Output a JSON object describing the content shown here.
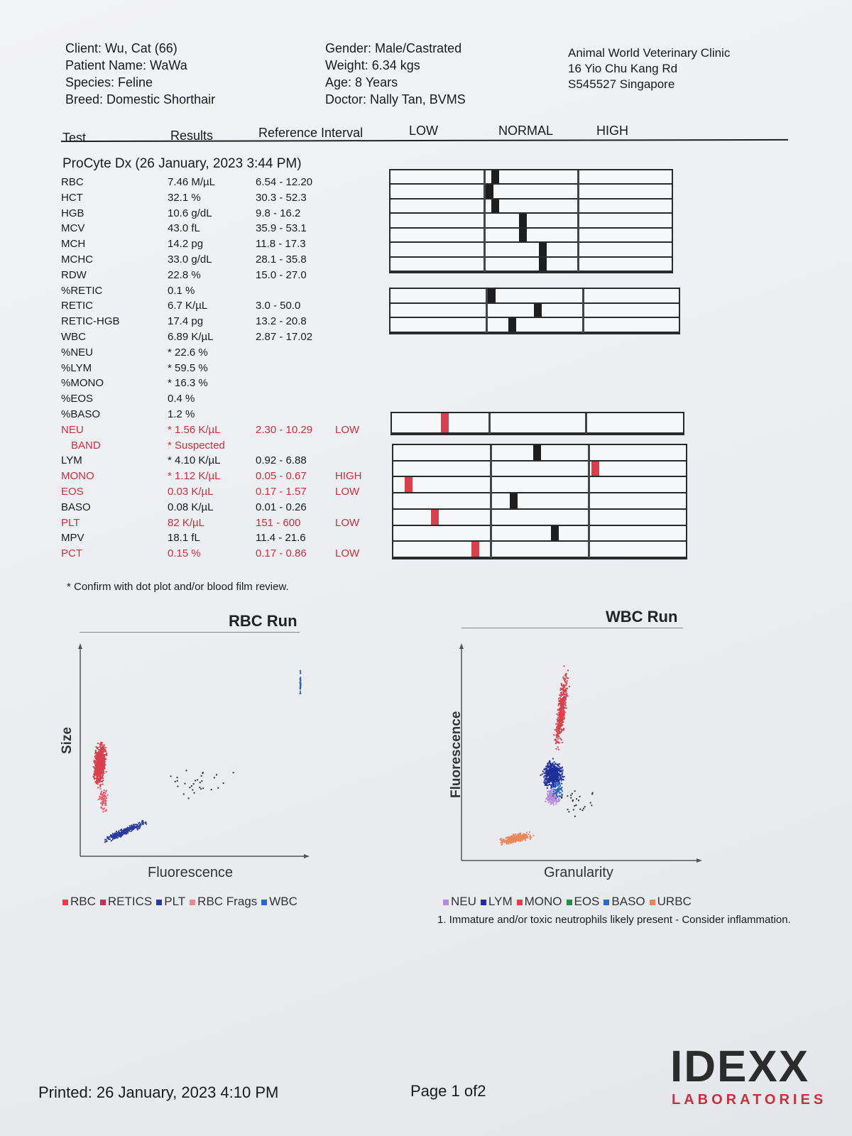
{
  "header": {
    "client": "Client: Wu, Cat (66)",
    "patient": "Patient Name: WaWa",
    "species": "Species: Feline",
    "breed": "Breed: Domestic Shorthair",
    "gender": "Gender: Male/Castrated",
    "weight": "Weight: 6.34 kgs",
    "age": "Age: 8 Years",
    "doctor": "Doctor: Nally Tan, BVMS",
    "clinic_name": "Animal World Veterinary Clinic",
    "clinic_address": "16 Yio Chu Kang Rd",
    "clinic_postcode": "S545527 Singapore"
  },
  "columns": {
    "test": "Test",
    "results": "Results",
    "reference": "Reference Interval",
    "low": "LOW",
    "normal": "NORMAL",
    "high": "HIGH"
  },
  "run_title": "ProCyte Dx (26 January, 2023 3:44 PM)",
  "results": [
    {
      "test": "RBC",
      "result": "7.46 M/µL",
      "ref": "6.54 - 12.20",
      "flag": "",
      "abnormal": false,
      "gauge_pos": 0.37
    },
    {
      "test": "HCT",
      "result": "32.1 %",
      "ref": "30.3 - 52.3",
      "flag": "",
      "abnormal": false,
      "gauge_pos": 0.35
    },
    {
      "test": "HGB",
      "result": "10.6 g/dL",
      "ref": "9.8 - 16.2",
      "flag": "",
      "abnormal": false,
      "gauge_pos": 0.37
    },
    {
      "test": "MCV",
      "result": "43.0 fL",
      "ref": "35.9 - 53.1",
      "flag": "",
      "abnormal": false,
      "gauge_pos": 0.47
    },
    {
      "test": "MCH",
      "result": "14.2 pg",
      "ref": "11.8 - 17.3",
      "flag": "",
      "abnormal": false,
      "gauge_pos": 0.47
    },
    {
      "test": "MCHC",
      "result": "33.0 g/dL",
      "ref": "28.1 - 35.8",
      "flag": "",
      "abnormal": false,
      "gauge_pos": 0.54
    },
    {
      "test": "RDW",
      "result": "22.8 %",
      "ref": "15.0 - 27.0",
      "flag": "",
      "abnormal": false,
      "gauge_pos": 0.54
    },
    {
      "test": "%RETIC",
      "result": "0.1 %",
      "ref": "",
      "flag": "",
      "abnormal": false
    },
    {
      "test": "RETIC",
      "result": "6.7 K/µL",
      "ref": "3.0 - 50.0",
      "flag": "",
      "abnormal": false,
      "gauge_pos": 0.35
    },
    {
      "test": "RETIC-HGB",
      "result": "17.4 pg",
      "ref": "13.2 - 20.8",
      "flag": "",
      "abnormal": false,
      "gauge_pos": 0.51
    },
    {
      "test": "WBC",
      "result": "6.89 K/µL",
      "ref": "2.87 - 17.02",
      "flag": "",
      "abnormal": false,
      "gauge_pos": 0.42
    },
    {
      "test": "%NEU",
      "result": "* 22.6 %",
      "ref": "",
      "flag": "",
      "abnormal": false
    },
    {
      "test": "%LYM",
      "result": "* 59.5 %",
      "ref": "",
      "flag": "",
      "abnormal": false
    },
    {
      "test": "%MONO",
      "result": "* 16.3 %",
      "ref": "",
      "flag": "",
      "abnormal": false
    },
    {
      "test": "%EOS",
      "result": "0.4 %",
      "ref": "",
      "flag": "",
      "abnormal": false
    },
    {
      "test": "%BASO",
      "result": "1.2 %",
      "ref": "",
      "flag": "",
      "abnormal": false
    },
    {
      "test": "NEU",
      "result": "* 1.56 K/µL",
      "ref": "2.30 - 10.29",
      "flag": "LOW",
      "abnormal": true,
      "gauge_pos": 0.18
    },
    {
      "test": "BAND",
      "result": "* Suspected",
      "ref": "",
      "flag": "",
      "abnormal": true
    },
    {
      "test": "LYM",
      "result": "* 4.10 K/µL",
      "ref": "0.92 - 6.88",
      "flag": "",
      "abnormal": false,
      "gauge_pos": 0.49
    },
    {
      "test": "MONO",
      "result": "* 1.12 K/µL",
      "ref": "0.05 - 0.67",
      "flag": "HIGH",
      "abnormal": true,
      "gauge_pos": 0.69
    },
    {
      "test": "EOS",
      "result": "0.03 K/µL",
      "ref": "0.17 - 1.57",
      "flag": "LOW",
      "abnormal": true,
      "gauge_pos": 0.05
    },
    {
      "test": "BASO",
      "result": "0.08 K/µL",
      "ref": "0.01 - 0.26",
      "flag": "",
      "abnormal": false,
      "gauge_pos": 0.41
    },
    {
      "test": "PLT",
      "result": "82 K/µL",
      "ref": "151 - 600",
      "flag": "LOW",
      "abnormal": true,
      "gauge_pos": 0.14
    },
    {
      "test": "MPV",
      "result": "18.1 fL",
      "ref": "11.4 - 21.6",
      "flag": "",
      "abnormal": false,
      "gauge_pos": 0.55
    },
    {
      "test": "PCT",
      "result": "0.15 %",
      "ref": "0.17 - 0.86",
      "flag": "LOW",
      "abnormal": true,
      "gauge_pos": 0.28
    }
  ],
  "footnote": "* Confirm with dot plot and/or blood film review.",
  "rbc_chart": {
    "title": "RBC Run",
    "xlabel": "Fluorescence",
    "ylabel": "Size",
    "legend": [
      {
        "label": "RBC",
        "color": "#d8404e"
      },
      {
        "label": "RETICS",
        "color": "#c8305a"
      },
      {
        "label": "PLT",
        "color": "#2a3a9a"
      },
      {
        "label": "RBC Frags",
        "color": "#e88a8a"
      },
      {
        "label": "WBC",
        "color": "#2a6ac0"
      }
    ]
  },
  "wbc_chart": {
    "title": "WBC Run",
    "xlabel": "Granularity",
    "ylabel": "Fluorescence",
    "legend": [
      {
        "label": "NEU",
        "color": "#b48ad8"
      },
      {
        "label": "LYM",
        "color": "#1f2f9a"
      },
      {
        "label": "MONO",
        "color": "#d8404e"
      },
      {
        "label": "EOS",
        "color": "#2a8a4a"
      },
      {
        "label": "BASO",
        "color": "#2a6ac0"
      },
      {
        "label": "URBC",
        "color": "#e8885a"
      }
    ]
  },
  "comment": "1. Immature and/or toxic neutrophils likely present - Consider inflammation.",
  "footer": {
    "printed": "Printed: 26 January, 2023 4:10 PM",
    "page": "Page 1 of2",
    "logo_main": "IDEXX",
    "logo_sub": "LABORATORIES"
  }
}
